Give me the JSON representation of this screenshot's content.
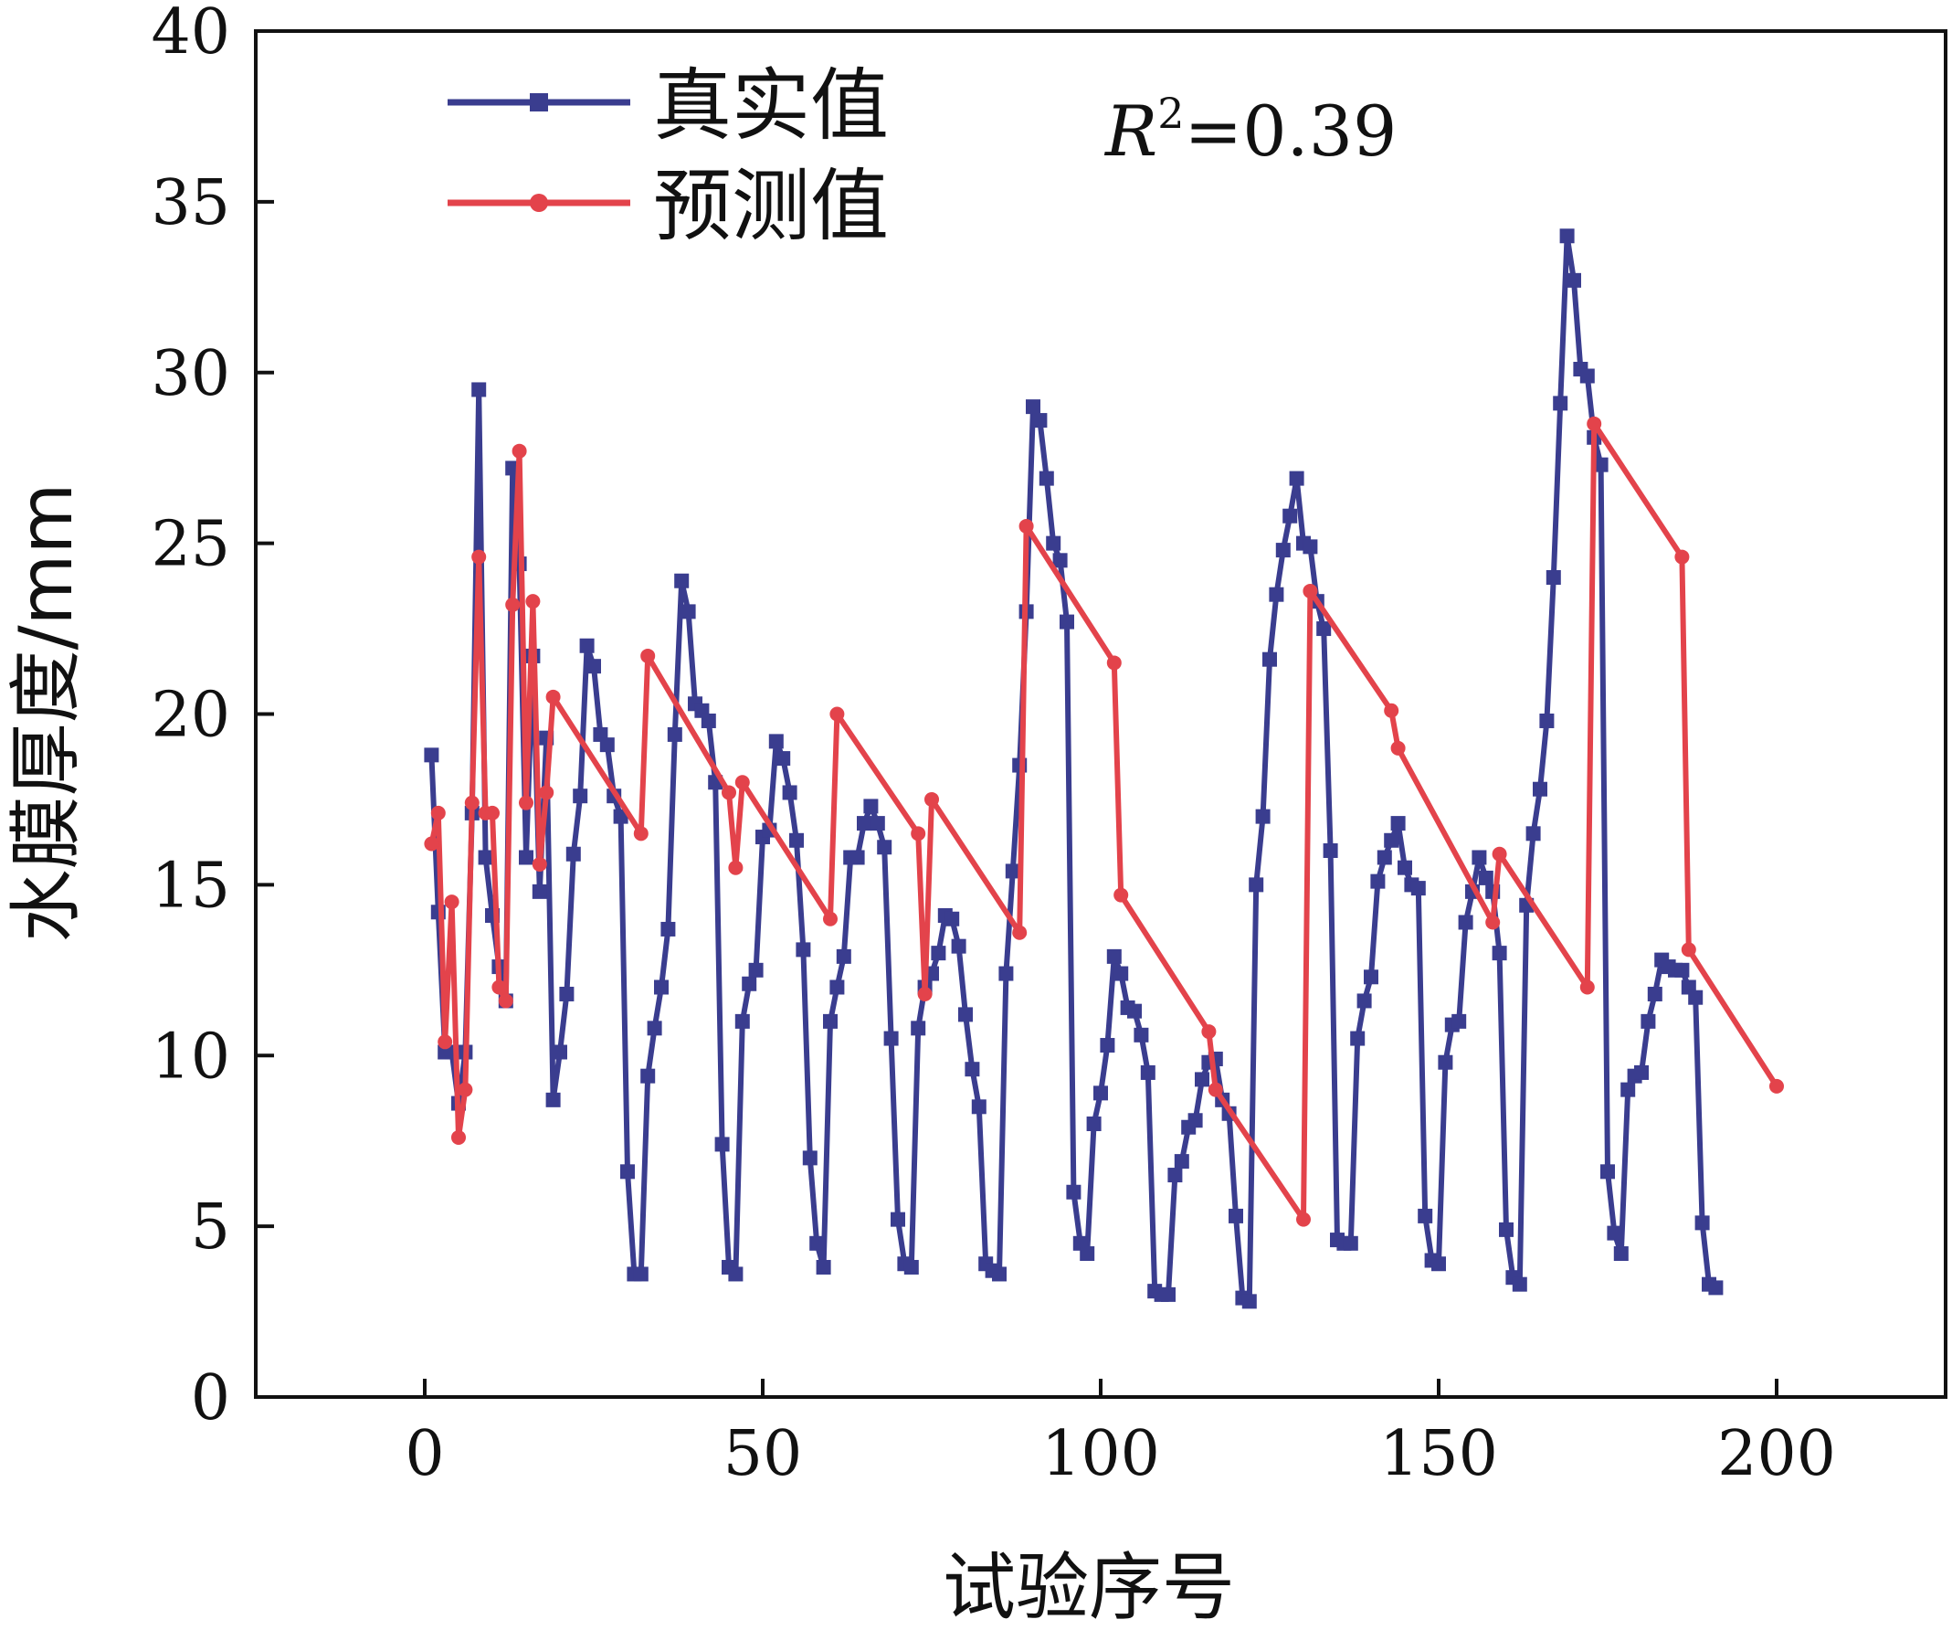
{
  "chart_data": {
    "type": "line",
    "title": "",
    "xlabel": "试验序号",
    "ylabel": "水膜厚度/mm",
    "xlim": [
      -25,
      225
    ],
    "ylim": [
      0,
      40
    ],
    "xticks": [
      0,
      50,
      100,
      150,
      200
    ],
    "yticks": [
      0,
      5,
      10,
      15,
      20,
      25,
      30,
      35,
      40
    ],
    "xtick_labels": [
      "0",
      "50",
      "100",
      "150",
      "200"
    ],
    "ytick_labels": [
      "0",
      "5",
      "10",
      "15",
      "20",
      "25",
      "30",
      "35",
      "40"
    ],
    "legend": "top-left",
    "grid": false,
    "annotation": {
      "prefix": "R",
      "sup": "2",
      "suffix": "=0.39"
    },
    "series": [
      {
        "name": "真实值",
        "color": "#3a3d8f",
        "points": [
          [
            1,
            18.8
          ],
          [
            2,
            14.2
          ],
          [
            3,
            10.1
          ],
          [
            4,
            10.1
          ],
          [
            5,
            8.6
          ],
          [
            6,
            10.1
          ],
          [
            7,
            17.1
          ],
          [
            8,
            29.5
          ],
          [
            9,
            15.8
          ],
          [
            10,
            14.1
          ],
          [
            11,
            12.6
          ],
          [
            12,
            11.6
          ],
          [
            13,
            27.2
          ],
          [
            14,
            24.4
          ],
          [
            15,
            15.8
          ],
          [
            16,
            21.7
          ],
          [
            17,
            14.8
          ],
          [
            18,
            19.3
          ],
          [
            19,
            8.7
          ],
          [
            20,
            10.1
          ],
          [
            21,
            11.8
          ],
          [
            22,
            15.9
          ],
          [
            23,
            17.6
          ],
          [
            24,
            22
          ],
          [
            25,
            21.4
          ],
          [
            26,
            19.4
          ],
          [
            27,
            19.1
          ],
          [
            28,
            17.6
          ],
          [
            29,
            17
          ],
          [
            30,
            6.6
          ],
          [
            31,
            3.6
          ],
          [
            32,
            3.6
          ],
          [
            33,
            9.4
          ],
          [
            34,
            10.8
          ],
          [
            35,
            12
          ],
          [
            36,
            13.7
          ],
          [
            37,
            19.4
          ],
          [
            38,
            23.9
          ],
          [
            39,
            23
          ],
          [
            40,
            20.3
          ],
          [
            41,
            20.1
          ],
          [
            42,
            19.8
          ],
          [
            43,
            18
          ],
          [
            44,
            7.4
          ],
          [
            45,
            3.8
          ],
          [
            46,
            3.6
          ],
          [
            47,
            11
          ],
          [
            48,
            12.1
          ],
          [
            49,
            12.5
          ],
          [
            50,
            16.4
          ],
          [
            51,
            16.6
          ],
          [
            52,
            19.2
          ],
          [
            53,
            18.7
          ],
          [
            54,
            17.7
          ],
          [
            55,
            16.3
          ],
          [
            56,
            13.1
          ],
          [
            57,
            7
          ],
          [
            58,
            4.5
          ],
          [
            59,
            3.8
          ],
          [
            60,
            11
          ],
          [
            61,
            12
          ],
          [
            62,
            12.9
          ],
          [
            63,
            15.8
          ],
          [
            64,
            15.8
          ],
          [
            65,
            16.8
          ],
          [
            66,
            17.3
          ],
          [
            67,
            16.8
          ],
          [
            68,
            16.1
          ],
          [
            69,
            10.5
          ],
          [
            70,
            5.2
          ],
          [
            71,
            3.9
          ],
          [
            72,
            3.8
          ],
          [
            73,
            10.8
          ],
          [
            74,
            12
          ],
          [
            75,
            12.4
          ],
          [
            76,
            13
          ],
          [
            77,
            14.1
          ],
          [
            78,
            14
          ],
          [
            79,
            13.2
          ],
          [
            80,
            11.2
          ],
          [
            81,
            9.6
          ],
          [
            82,
            8.5
          ],
          [
            83,
            3.9
          ],
          [
            84,
            3.7
          ],
          [
            85,
            3.6
          ],
          [
            86,
            12.4
          ],
          [
            87,
            15.4
          ],
          [
            88,
            18.5
          ],
          [
            89,
            23
          ],
          [
            90,
            29
          ],
          [
            91,
            28.6
          ],
          [
            92,
            26.9
          ],
          [
            93,
            25
          ],
          [
            94,
            24.5
          ],
          [
            95,
            22.7
          ],
          [
            96,
            6
          ],
          [
            97,
            4.5
          ],
          [
            98,
            4.2
          ],
          [
            99,
            8
          ],
          [
            100,
            8.9
          ],
          [
            101,
            10.3
          ],
          [
            102,
            12.9
          ],
          [
            103,
            12.4
          ],
          [
            104,
            11.4
          ],
          [
            105,
            11.3
          ],
          [
            106,
            10.6
          ],
          [
            107,
            9.5
          ],
          [
            108,
            3.1
          ],
          [
            109,
            3
          ],
          [
            110,
            3
          ],
          [
            111,
            6.5
          ],
          [
            112,
            6.9
          ],
          [
            113,
            7.9
          ],
          [
            114,
            8.1
          ],
          [
            115,
            9.3
          ],
          [
            116,
            9.8
          ],
          [
            117,
            9.9
          ],
          [
            118,
            8.7
          ],
          [
            119,
            8.3
          ],
          [
            120,
            5.3
          ],
          [
            121,
            2.9
          ],
          [
            122,
            2.8
          ],
          [
            123,
            15
          ],
          [
            124,
            17
          ],
          [
            125,
            21.6
          ],
          [
            126,
            23.5
          ],
          [
            127,
            24.8
          ],
          [
            128,
            25.8
          ],
          [
            129,
            26.9
          ],
          [
            130,
            25
          ],
          [
            131,
            24.9
          ],
          [
            132,
            23.3
          ],
          [
            133,
            22.5
          ],
          [
            134,
            16
          ],
          [
            135,
            4.6
          ],
          [
            136,
            4.5
          ],
          [
            137,
            4.5
          ],
          [
            138,
            10.5
          ],
          [
            139,
            11.6
          ],
          [
            140,
            12.3
          ],
          [
            141,
            15.1
          ],
          [
            142,
            15.8
          ],
          [
            143,
            16.3
          ],
          [
            144,
            16.8
          ],
          [
            145,
            15.5
          ],
          [
            146,
            15
          ],
          [
            147,
            14.9
          ],
          [
            148,
            5.3
          ],
          [
            149,
            4
          ],
          [
            150,
            3.9
          ],
          [
            151,
            9.8
          ],
          [
            152,
            10.9
          ],
          [
            153,
            11
          ],
          [
            154,
            13.9
          ],
          [
            155,
            14.8
          ],
          [
            156,
            15.8
          ],
          [
            157,
            15.2
          ],
          [
            158,
            14.8
          ],
          [
            159,
            13
          ],
          [
            160,
            4.9
          ],
          [
            161,
            3.5
          ],
          [
            162,
            3.3
          ],
          [
            163,
            14.4
          ],
          [
            164,
            16.5
          ],
          [
            165,
            17.8
          ],
          [
            166,
            19.8
          ],
          [
            167,
            24
          ],
          [
            168,
            29.1
          ],
          [
            169,
            34
          ],
          [
            170,
            32.7
          ],
          [
            171,
            30.1
          ],
          [
            172,
            29.9
          ],
          [
            173,
            28.1
          ],
          [
            174,
            27.3
          ],
          [
            175,
            6.6
          ],
          [
            176,
            4.8
          ],
          [
            177,
            4.2
          ],
          [
            178,
            9
          ],
          [
            179,
            9.4
          ],
          [
            180,
            9.5
          ],
          [
            181,
            11
          ],
          [
            182,
            11.8
          ],
          [
            183,
            12.8
          ],
          [
            184,
            12.6
          ],
          [
            185,
            12.5
          ],
          [
            186,
            12.5
          ],
          [
            187,
            12
          ],
          [
            188,
            11.7
          ],
          [
            189,
            5.1
          ],
          [
            190,
            3.3
          ],
          [
            191,
            3.2
          ]
        ]
      },
      {
        "name": "预测值",
        "color": "#e3434b",
        "points": [
          [
            1,
            16.2
          ],
          [
            2,
            17.1
          ],
          [
            3,
            10.4
          ],
          [
            4,
            14.5
          ],
          [
            5,
            7.6
          ],
          [
            6,
            9
          ],
          [
            7,
            17.4
          ],
          [
            8,
            24.6
          ],
          [
            9,
            17.1
          ],
          [
            10,
            17.1
          ],
          [
            11,
            12
          ],
          [
            12,
            11.6
          ],
          [
            13,
            23.2
          ],
          [
            14,
            27.7
          ],
          [
            15,
            17.4
          ],
          [
            16,
            23.3
          ],
          [
            17,
            15.6
          ],
          [
            18,
            17.7
          ],
          [
            19,
            20.5
          ],
          [
            32,
            16.5
          ],
          [
            33,
            21.7
          ],
          [
            45,
            17.7
          ],
          [
            46,
            15.5
          ],
          [
            47,
            18
          ],
          [
            60,
            14
          ],
          [
            61,
            20
          ],
          [
            73,
            16.5
          ],
          [
            74,
            11.8
          ],
          [
            75,
            17.5
          ],
          [
            88,
            13.6
          ],
          [
            89,
            25.5
          ],
          [
            102,
            21.5
          ],
          [
            103,
            14.7
          ],
          [
            116,
            10.7
          ],
          [
            117,
            9
          ],
          [
            130,
            5.2
          ],
          [
            131,
            23.6
          ],
          [
            143,
            20.1
          ],
          [
            144,
            19
          ],
          [
            158,
            13.9
          ],
          [
            159,
            15.9
          ],
          [
            172,
            12
          ],
          [
            173,
            28.5
          ],
          [
            186,
            24.6
          ],
          [
            187,
            13.1
          ],
          [
            200,
            9.1
          ]
        ]
      }
    ]
  }
}
